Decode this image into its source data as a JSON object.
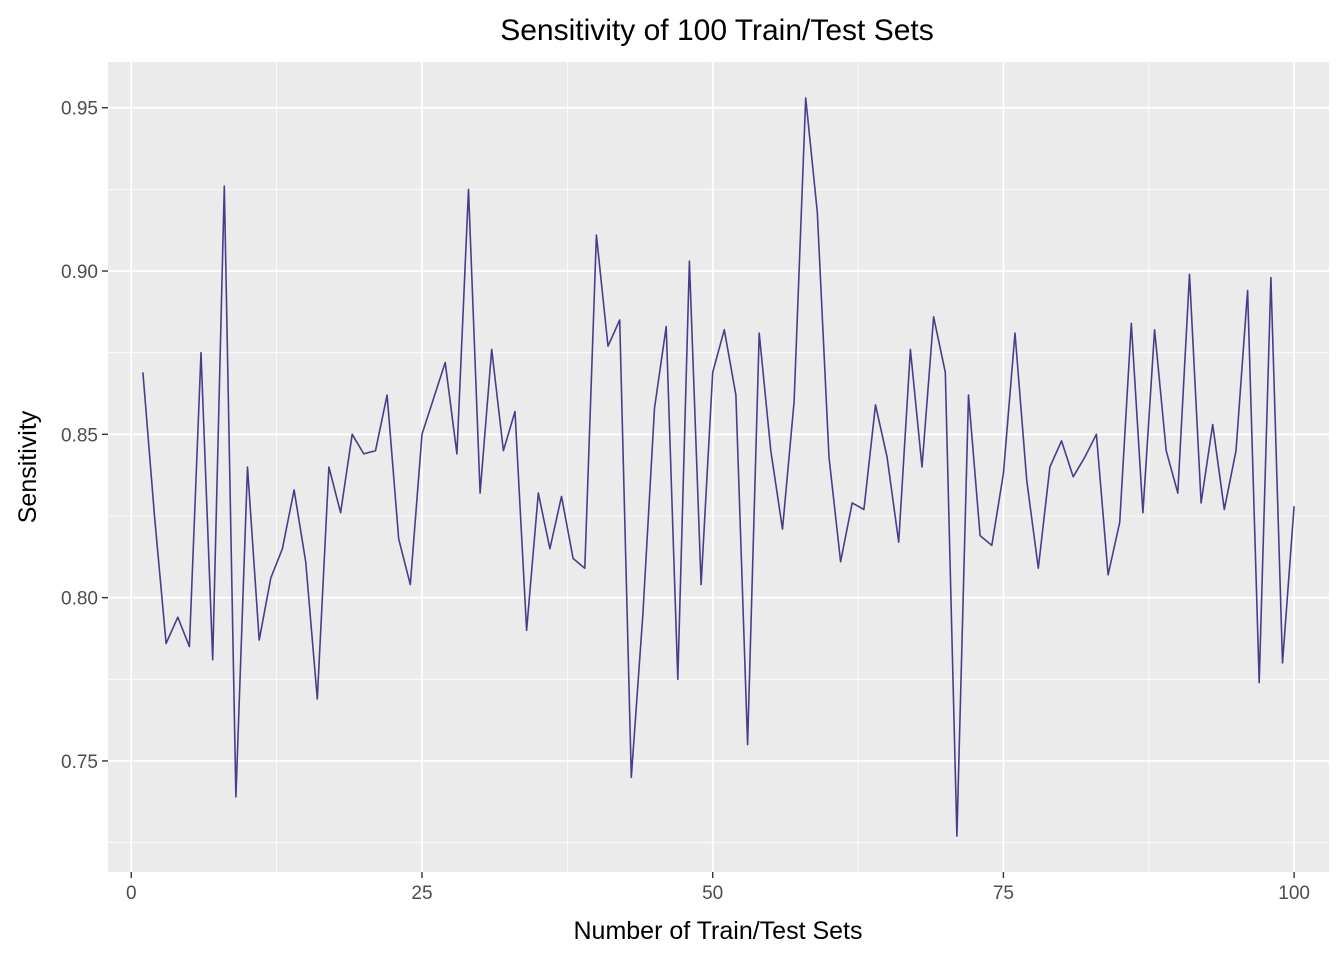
{
  "chart_data": {
    "type": "line",
    "title": "Sensitivity of 100 Train/Test Sets",
    "xlabel": "Number of Train/Test Sets",
    "ylabel": "Sensitivity",
    "xlim": [
      -2,
      103
    ],
    "ylim": [
      0.716,
      0.964
    ],
    "x_ticks": [
      0,
      25,
      50,
      75,
      100
    ],
    "x_tick_labels": [
      "0",
      "25",
      "50",
      "75",
      "100"
    ],
    "y_ticks": [
      0.75,
      0.8,
      0.85,
      0.9,
      0.95
    ],
    "y_tick_labels": [
      "0.75",
      "0.80",
      "0.85",
      "0.90",
      "0.95"
    ],
    "grid": true,
    "legend": "none",
    "colors": {
      "line": "#483D8B",
      "panel": "#EBEBEB",
      "grid": "#FFFFFF"
    },
    "series": [
      {
        "x": [
          1,
          2,
          3,
          4,
          5,
          6,
          7,
          8,
          9,
          10,
          11,
          12,
          13,
          14,
          15,
          16,
          17,
          18,
          19,
          20,
          21,
          22,
          23,
          24,
          25,
          26,
          27,
          28,
          29,
          30,
          31,
          32,
          33,
          34,
          35,
          36,
          37,
          38,
          39,
          40,
          41,
          42,
          43,
          44,
          45,
          46,
          47,
          48,
          49,
          50,
          51,
          52,
          53,
          54,
          55,
          56,
          57,
          58,
          59,
          60,
          61,
          62,
          63,
          64,
          65,
          66,
          67,
          68,
          69,
          70,
          71,
          72,
          73,
          74,
          75,
          76,
          77,
          78,
          79,
          80,
          81,
          82,
          83,
          84,
          85,
          86,
          87,
          88,
          89,
          90,
          91,
          92,
          93,
          94,
          95,
          96,
          97,
          98,
          99,
          100
        ],
        "values": [
          0.869,
          0.825,
          0.786,
          0.794,
          0.785,
          0.875,
          0.781,
          0.926,
          0.739,
          0.84,
          0.787,
          0.806,
          0.815,
          0.833,
          0.811,
          0.769,
          0.84,
          0.826,
          0.85,
          0.844,
          0.845,
          0.862,
          0.818,
          0.804,
          0.85,
          0.861,
          0.872,
          0.844,
          0.925,
          0.832,
          0.876,
          0.845,
          0.857,
          0.79,
          0.832,
          0.815,
          0.831,
          0.812,
          0.809,
          0.911,
          0.877,
          0.885,
          0.745,
          0.795,
          0.858,
          0.883,
          0.775,
          0.903,
          0.804,
          0.869,
          0.882,
          0.862,
          0.755,
          0.881,
          0.845,
          0.821,
          0.86,
          0.953,
          0.918,
          0.843,
          0.811,
          0.829,
          0.827,
          0.859,
          0.843,
          0.817,
          0.876,
          0.84,
          0.886,
          0.869,
          0.727,
          0.862,
          0.819,
          0.816,
          0.838,
          0.881,
          0.836,
          0.809,
          0.84,
          0.848,
          0.837,
          0.843,
          0.85,
          0.807,
          0.823,
          0.884,
          0.826,
          0.882,
          0.845,
          0.832,
          0.899,
          0.829,
          0.853,
          0.827,
          0.845,
          0.894,
          0.774,
          0.898,
          0.78,
          0.828
        ]
      }
    ]
  }
}
